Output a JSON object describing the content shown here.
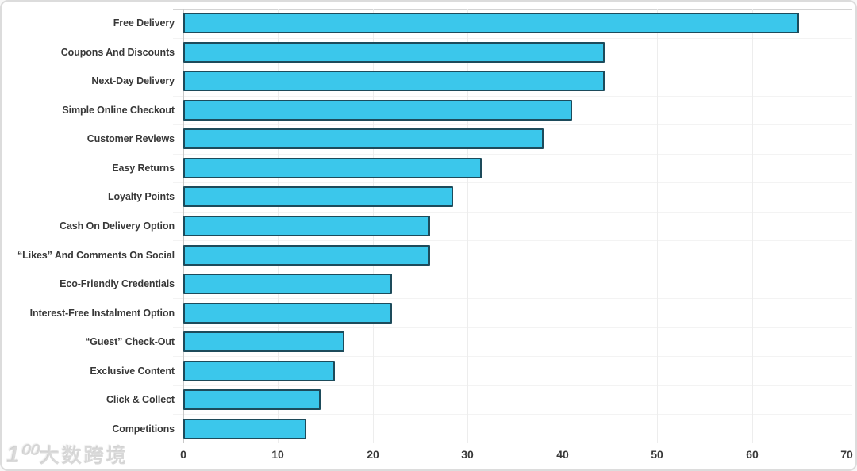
{
  "chart_data": {
    "type": "bar",
    "orientation": "horizontal",
    "title": "",
    "xlabel": "",
    "ylabel": "",
    "categories": [
      "Free Delivery",
      "Coupons And Discounts",
      "Next-Day Delivery",
      "Simple Online Checkout",
      "Customer Reviews",
      "Easy Returns",
      "Loyalty Points",
      "Cash On Delivery Option",
      "“Likes” And Comments On Social",
      "Eco-Friendly Credentials",
      "Interest-Free Instalment Option",
      "“Guest” Check-Out",
      "Exclusive Content",
      "Click & Collect",
      "Competitions"
    ],
    "values": [
      65,
      44.5,
      44.5,
      41,
      38,
      31.5,
      28.5,
      26,
      26,
      22,
      22,
      17,
      16,
      14.5,
      13
    ],
    "xlim": [
      0,
      70
    ],
    "x_ticks": [
      "0",
      "10",
      "20",
      "30",
      "40",
      "50",
      "60",
      "70"
    ],
    "grid": "vertical",
    "legend": "none",
    "bar_fill_color": "#3bc7eb",
    "bar_border_color": "#1d4b5b"
  },
  "watermark": {
    "logo": "1⁰⁰",
    "text": "大数跨境"
  }
}
